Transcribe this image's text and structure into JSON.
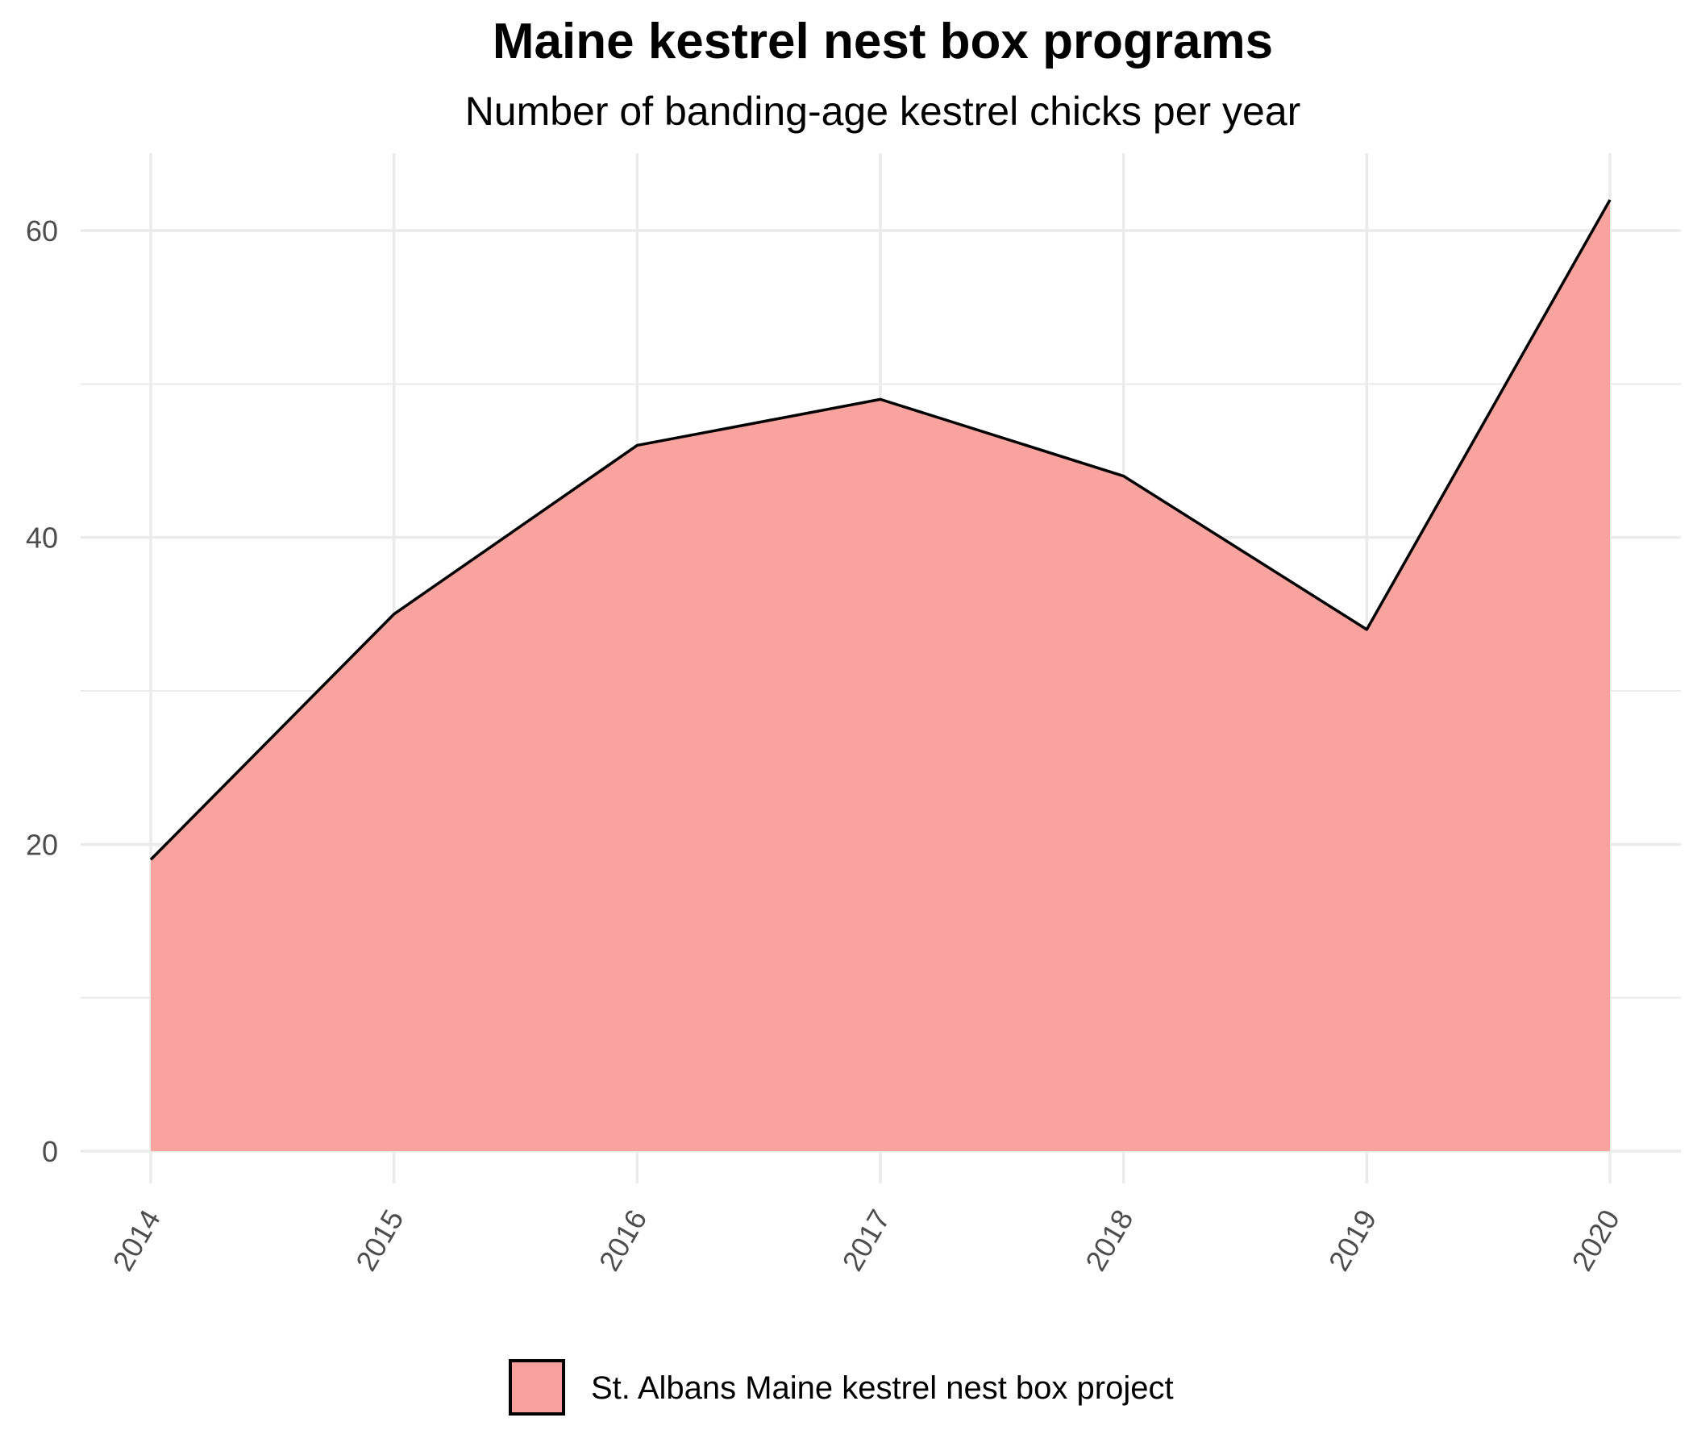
{
  "chart_data": {
    "type": "area",
    "title": "Maine kestrel nest box programs",
    "subtitle": "Number of banding-age kestrel chicks per year",
    "xlabel": "",
    "ylabel": "",
    "x": [
      2014,
      2015,
      2016,
      2017,
      2018,
      2019,
      2020
    ],
    "series": [
      {
        "name": "St. Albans Maine kestrel nest box project",
        "values": [
          19,
          35,
          46,
          49,
          44,
          34,
          62
        ],
        "fill_color": "#f8a09b",
        "line_color": "#000000"
      }
    ],
    "ylim": [
      0,
      65
    ],
    "y_ticks": [
      0,
      20,
      40,
      60
    ],
    "y_minor_ticks": [
      10,
      30,
      50
    ],
    "x_tick_labels": [
      "2014",
      "2015",
      "2016",
      "2017",
      "2018",
      "2019",
      "2020"
    ],
    "y_tick_labels": [
      "0",
      "20",
      "40",
      "60"
    ],
    "grid": true,
    "legend_position": "bottom",
    "colors": {
      "gridline": "#ebebeb",
      "tick_label": "#4d4d4d"
    }
  }
}
